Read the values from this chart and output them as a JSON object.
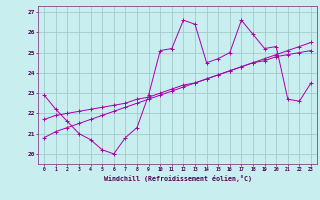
{
  "xlabel": "Windchill (Refroidissement éolien,°C)",
  "bg_color": "#c8eef0",
  "line_color": "#aa00aa",
  "grid_color": "#a0ccc8",
  "ylim": [
    19.5,
    27.3
  ],
  "xlim": [
    -0.5,
    23.5
  ],
  "yticks": [
    20,
    21,
    22,
    23,
    24,
    25,
    26,
    27
  ],
  "xticks": [
    0,
    1,
    2,
    3,
    4,
    5,
    6,
    7,
    8,
    9,
    10,
    11,
    12,
    13,
    14,
    15,
    16,
    17,
    18,
    19,
    20,
    21,
    22,
    23
  ],
  "line1_x": [
    0,
    1,
    2,
    3,
    4,
    5,
    6,
    7,
    8,
    9,
    10,
    11,
    12,
    13,
    14,
    15,
    16,
    17,
    18,
    19,
    20,
    21,
    22,
    23
  ],
  "line1_y": [
    22.9,
    22.2,
    21.6,
    21.0,
    20.7,
    20.2,
    20.0,
    20.8,
    21.3,
    22.9,
    25.1,
    25.2,
    26.6,
    26.4,
    24.5,
    24.7,
    25.0,
    26.6,
    25.9,
    25.2,
    25.3,
    22.7,
    22.6,
    23.5
  ],
  "line2_x": [
    0,
    1,
    2,
    3,
    4,
    5,
    6,
    7,
    8,
    9,
    10,
    11,
    12,
    13,
    14,
    15,
    16,
    17,
    18,
    19,
    20,
    21,
    22,
    23
  ],
  "line2_y": [
    21.7,
    21.9,
    22.0,
    22.1,
    22.2,
    22.3,
    22.4,
    22.5,
    22.7,
    22.8,
    23.0,
    23.2,
    23.4,
    23.5,
    23.7,
    23.9,
    24.1,
    24.3,
    24.5,
    24.6,
    24.8,
    24.9,
    25.0,
    25.1
  ],
  "line3_x": [
    0,
    1,
    2,
    3,
    4,
    5,
    6,
    7,
    8,
    9,
    10,
    11,
    12,
    13,
    14,
    15,
    16,
    17,
    18,
    19,
    20,
    21,
    22,
    23
  ],
  "line3_y": [
    20.8,
    21.1,
    21.3,
    21.5,
    21.7,
    21.9,
    22.1,
    22.3,
    22.5,
    22.7,
    22.9,
    23.1,
    23.3,
    23.5,
    23.7,
    23.9,
    24.1,
    24.3,
    24.5,
    24.7,
    24.9,
    25.1,
    25.3,
    25.5
  ]
}
